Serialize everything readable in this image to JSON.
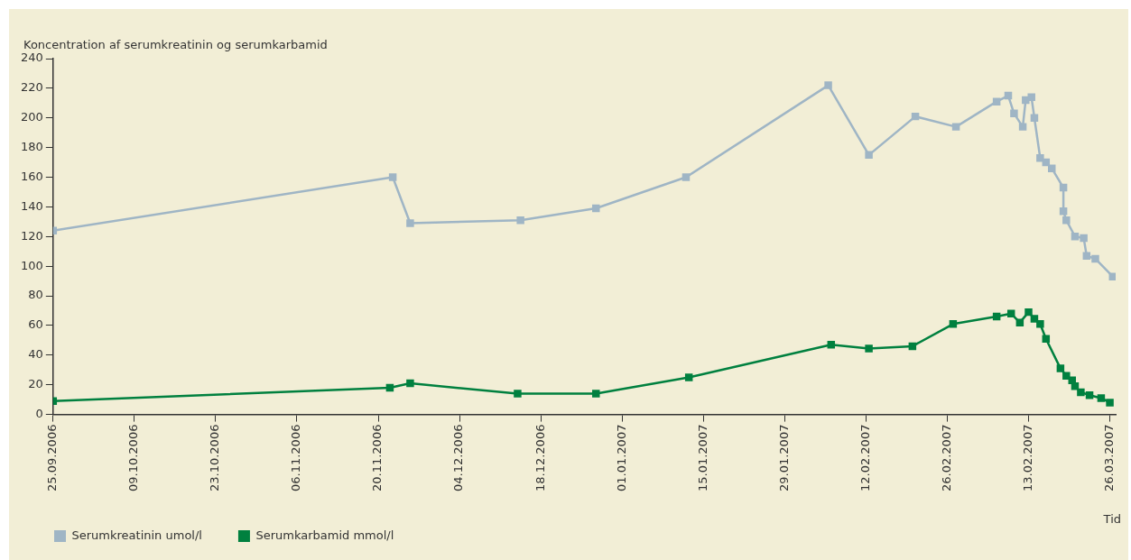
{
  "chart_data": {
    "type": "line",
    "ylabel": "Koncentration af serumkreatinin og serumkarbamid",
    "xlabel": "Tid",
    "xlim": [
      "2006-09-25",
      "2007-03-27"
    ],
    "xticks": [
      {
        "value": "2006-09-25",
        "label": "25.09.2006"
      },
      {
        "value": "2006-10-09",
        "label": "09.10.2006"
      },
      {
        "value": "2006-10-23",
        "label": "23.10.2006"
      },
      {
        "value": "2006-11-06",
        "label": "06.11.2006"
      },
      {
        "value": "2006-11-20",
        "label": "20.11.2006"
      },
      {
        "value": "2006-12-04",
        "label": "04.12.2006"
      },
      {
        "value": "2006-12-18",
        "label": "18.12.2006"
      },
      {
        "value": "2007-01-01",
        "label": "01.01.2007"
      },
      {
        "value": "2007-01-15",
        "label": "15.01.2007"
      },
      {
        "value": "2007-01-29",
        "label": "29.01.2007"
      },
      {
        "value": "2007-02-12",
        "label": "12.02.2007"
      },
      {
        "value": "2007-02-26",
        "label": "26.02.2007"
      },
      {
        "value": "2007-03-12",
        "label": "13.02.2007"
      },
      {
        "value": "2007-03-26",
        "label": "26.03.2007"
      }
    ],
    "ylim": [
      0,
      240
    ],
    "yticks": [
      0,
      20,
      40,
      60,
      80,
      100,
      120,
      140,
      160,
      180,
      200,
      220,
      240
    ],
    "legend": "bottom left",
    "marker": "square",
    "line_style": "solid",
    "series": [
      {
        "name": "Serumkreatinin umol/l",
        "color": "#9fb5c5",
        "x": [
          "2006-09-25",
          "2006-11-22T12:00",
          "2006-11-25T12:00",
          "2006-12-14T12:00",
          "2006-12-27T12:00",
          "2007-01-12",
          "2007-02-05T12:00",
          "2007-02-12T12:00",
          "2007-02-20T12:00",
          "2007-02-27T12:00",
          "2007-03-06T12:00",
          "2007-03-08T12:00",
          "2007-03-09T12:00",
          "2007-03-11",
          "2007-03-11T12:00",
          "2007-03-12T12:00",
          "2007-03-13",
          "2007-03-14",
          "2007-03-15",
          "2007-03-16",
          "2007-03-18",
          "2007-03-18",
          "2007-03-18T12:00",
          "2007-03-20",
          "2007-03-21T12:00",
          "2007-03-22",
          "2007-03-23T12:00",
          "2007-03-26T12:00"
        ],
        "values": [
          124,
          160,
          129,
          131,
          139,
          160,
          222,
          175,
          201,
          194,
          211,
          215,
          203,
          194,
          212,
          214,
          200,
          173,
          170,
          166,
          153,
          137,
          131,
          120,
          119,
          107,
          105,
          93
        ]
      },
      {
        "name": "Serumkarbamid mmol/l",
        "color": "#00803f",
        "x": [
          "2006-09-25",
          "2006-11-22",
          "2006-11-25T12:00",
          "2006-12-14",
          "2006-12-27T12:00",
          "2007-01-12T12:00",
          "2007-02-06",
          "2007-02-12T12:00",
          "2007-02-20",
          "2007-02-27",
          "2007-03-06T12:00",
          "2007-03-09",
          "2007-03-10T12:00",
          "2007-03-12",
          "2007-03-13",
          "2007-03-14",
          "2007-03-15",
          "2007-03-17T12:00",
          "2007-03-18T12:00",
          "2007-03-19T12:00",
          "2007-03-20",
          "2007-03-21",
          "2007-03-22T12:00",
          "2007-03-24T12:00",
          "2007-03-26"
        ],
        "values": [
          9,
          18,
          21,
          14,
          14,
          25,
          47,
          44.5,
          46,
          61,
          66,
          68,
          62,
          69,
          64.5,
          61,
          51,
          31,
          26,
          23,
          19,
          15,
          13,
          11,
          8
        ]
      }
    ]
  }
}
